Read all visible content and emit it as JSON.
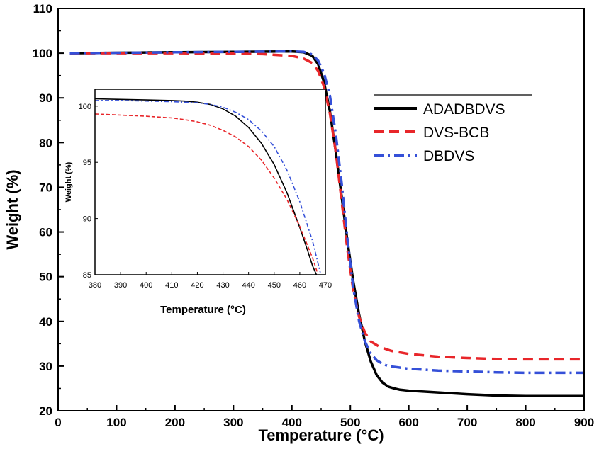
{
  "chart_data": [
    {
      "type": "line",
      "xlabel": "Temperature (°C)",
      "ylabel": "Weight (%)",
      "xlim": [
        0,
        900
      ],
      "ylim": [
        20,
        110
      ],
      "xticks": [
        "0",
        "100",
        "200",
        "300",
        "400",
        "500",
        "600",
        "700",
        "800",
        "900"
      ],
      "yticks": [
        "20",
        "30",
        "40",
        "50",
        "60",
        "70",
        "80",
        "90",
        "100",
        "110"
      ],
      "grid": false,
      "legend_position": "right",
      "series": [
        {
          "name": "ADADBDVS",
          "color": "#000000",
          "style": "solid",
          "x": [
            20,
            100,
            200,
            300,
            400,
            420,
            435,
            445,
            455,
            465,
            475,
            485,
            495,
            505,
            515,
            525,
            535,
            545,
            555,
            565,
            575,
            585,
            600,
            650,
            700,
            750,
            800,
            850,
            900
          ],
          "y": [
            100.0,
            100.1,
            100.2,
            100.3,
            100.4,
            100.2,
            99.4,
            97.5,
            93.5,
            87.0,
            78.0,
            68.0,
            58.0,
            49.0,
            41.5,
            35.5,
            31.0,
            28.0,
            26.3,
            25.4,
            25.0,
            24.7,
            24.5,
            24.1,
            23.7,
            23.4,
            23.3,
            23.3,
            23.3
          ]
        },
        {
          "name": "DVS-BCB",
          "color": "#e8262a",
          "style": "dashed",
          "x": [
            20,
            100,
            200,
            300,
            350,
            400,
            420,
            435,
            445,
            455,
            465,
            475,
            485,
            495,
            505,
            515,
            525,
            535,
            550,
            570,
            600,
            650,
            700,
            750,
            800,
            850,
            900
          ],
          "y": [
            100.0,
            100.0,
            100.0,
            99.9,
            99.8,
            99.4,
            98.8,
            97.8,
            96.0,
            92.5,
            86.5,
            78.0,
            67.0,
            56.0,
            47.0,
            41.0,
            37.5,
            35.5,
            34.3,
            33.4,
            32.7,
            32.1,
            31.8,
            31.6,
            31.5,
            31.5,
            31.5
          ]
        },
        {
          "name": "DBDVS",
          "color": "#3550d8",
          "style": "dashdot",
          "x": [
            20,
            100,
            200,
            300,
            400,
            420,
            435,
            445,
            455,
            465,
            475,
            485,
            495,
            505,
            515,
            525,
            535,
            545,
            555,
            565,
            600,
            650,
            700,
            750,
            800,
            850,
            900
          ],
          "y": [
            100.0,
            100.1,
            100.2,
            100.3,
            100.4,
            100.3,
            99.7,
            98.3,
            95.5,
            90.5,
            82.0,
            71.0,
            58.5,
            47.5,
            40.0,
            35.5,
            32.8,
            31.3,
            30.5,
            30.0,
            29.4,
            29.0,
            28.8,
            28.6,
            28.5,
            28.5,
            28.5
          ]
        }
      ]
    },
    {
      "type": "line",
      "xlabel": "Temperature (°C)",
      "ylabel": "Weight (%)",
      "xlim": [
        380,
        470
      ],
      "ylim": [
        85,
        101.5
      ],
      "xticks": [
        "380",
        "390",
        "400",
        "410",
        "420",
        "430",
        "440",
        "450",
        "460",
        "470"
      ],
      "yticks": [
        "85",
        "90",
        "95",
        "100"
      ],
      "grid": false,
      "series": [
        {
          "name": "ADADBDVS",
          "color": "#000000",
          "style": "solid",
          "x": [
            380,
            390,
            400,
            410,
            415,
            420,
            425,
            430,
            435,
            440,
            445,
            450,
            455,
            460,
            463,
            465,
            466.5
          ],
          "y": [
            100.65,
            100.6,
            100.55,
            100.5,
            100.45,
            100.35,
            100.15,
            99.75,
            99.1,
            98.1,
            96.7,
            94.8,
            92.3,
            89.2,
            87.2,
            85.8,
            84.9
          ]
        },
        {
          "name": "DVS-BCB",
          "color": "#e8262a",
          "style": "dashed",
          "x": [
            380,
            390,
            400,
            410,
            415,
            420,
            425,
            430,
            435,
            440,
            445,
            450,
            455,
            460,
            465,
            467
          ],
          "y": [
            99.3,
            99.2,
            99.1,
            98.95,
            98.8,
            98.6,
            98.3,
            97.85,
            97.25,
            96.4,
            95.2,
            93.6,
            91.7,
            89.3,
            86.5,
            85.1
          ]
        },
        {
          "name": "DBDVS",
          "color": "#3550d8",
          "style": "dashdot",
          "x": [
            380,
            390,
            400,
            410,
            420,
            425,
            430,
            435,
            440,
            445,
            450,
            455,
            460,
            465,
            468
          ],
          "y": [
            100.5,
            100.5,
            100.45,
            100.4,
            100.3,
            100.15,
            99.9,
            99.45,
            98.8,
            97.8,
            96.4,
            94.3,
            91.5,
            88.0,
            85.2
          ]
        }
      ]
    }
  ]
}
